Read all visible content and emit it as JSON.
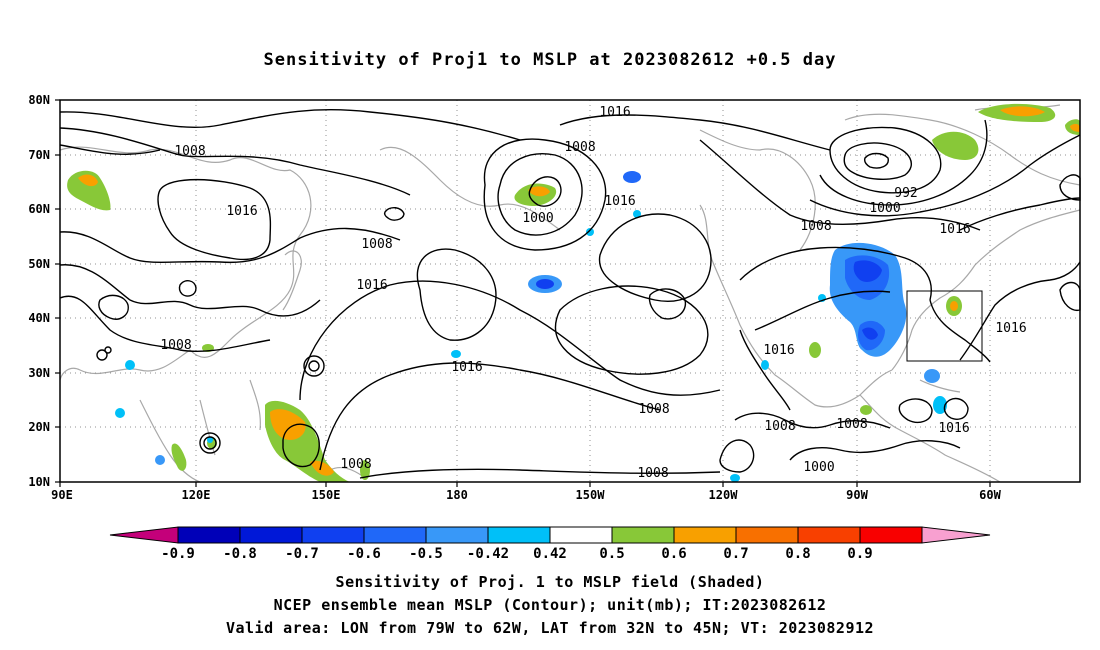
{
  "title": "Sensitivity of Proj1 to MSLP at 2023082612 +0.5 day",
  "map": {
    "lat_labels": [
      "80N",
      "70N",
      "60N",
      "50N",
      "40N",
      "30N",
      "20N",
      "10N"
    ],
    "lon_labels": [
      "90E",
      "120E",
      "150E",
      "180",
      "150W",
      "120W",
      "90W",
      "60W"
    ],
    "lon_range": [
      "90E",
      "50W"
    ],
    "lat_range": [
      "10N",
      "80N"
    ],
    "grid": "dotted",
    "valid_box": {
      "lon_from": "79W",
      "lon_to": "62W",
      "lat_from": "32N",
      "lat_to": "45N"
    },
    "contour_unit": "mb",
    "contour_labels": [
      "1016",
      "1008",
      "1016",
      "1000",
      "1008",
      "1016",
      "1016",
      "1008",
      "992",
      "1000",
      "1008",
      "1016",
      "1016",
      "1016",
      "1016",
      "1008",
      "1008",
      "1008",
      "1008",
      "1008",
      "1008",
      "1016",
      "1000"
    ]
  },
  "colorbar": {
    "labels": [
      "-0.9",
      "-0.8",
      "-0.7",
      "-0.6",
      "-0.5",
      "-0.42",
      "0.42",
      "0.5",
      "0.6",
      "0.7",
      "0.8",
      "0.9"
    ],
    "colors": [
      "#c4007a",
      "#0000b8",
      "#0018d8",
      "#1040f0",
      "#2068f8",
      "#3898f8",
      "#00c0f8",
      "#ffffff",
      "#88c838",
      "#f8a000",
      "#f87000",
      "#f84000",
      "#f80000",
      "#f8a0d0"
    ]
  },
  "captions": [
    "Sensitivity of Proj. 1 to MSLP field (Shaded)",
    "NCEP ensemble mean MSLP (Contour); unit(mb); IT:2023082612",
    "Valid area: LON from 79W to 62W, LAT from 32N to 45N; VT: 2023082912"
  ]
}
